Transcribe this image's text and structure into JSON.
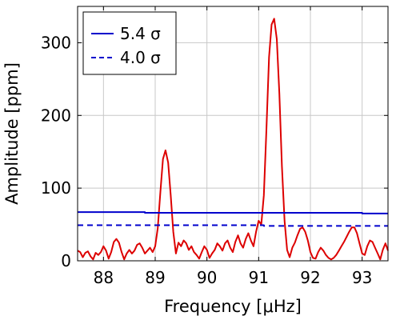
{
  "chart_data": {
    "type": "line",
    "xlabel": "Frequency [μHz]",
    "ylabel": "Amplitude [ppm]",
    "xlim": [
      87.5,
      93.5
    ],
    "ylim": [
      0,
      350
    ],
    "xticks": [
      88,
      89,
      90,
      91,
      92,
      93
    ],
    "yticks": [
      0,
      100,
      200,
      300
    ],
    "grid": true,
    "legend_placement": "top-left",
    "legend": [
      {
        "label": "5.4 σ",
        "color": "#0000cc",
        "style": "solid"
      },
      {
        "label": "4.0 σ",
        "color": "#0000cc",
        "style": "dashed"
      }
    ],
    "series": [
      {
        "color": "#dd0000",
        "style": "solid",
        "points": [
          [
            87.5,
            14
          ],
          [
            87.55,
            12
          ],
          [
            87.6,
            5
          ],
          [
            87.65,
            11
          ],
          [
            87.7,
            13
          ],
          [
            87.75,
            6
          ],
          [
            87.8,
            2
          ],
          [
            87.85,
            11
          ],
          [
            87.9,
            8
          ],
          [
            87.95,
            12
          ],
          [
            88.0,
            20
          ],
          [
            88.05,
            14
          ],
          [
            88.1,
            3
          ],
          [
            88.15,
            12
          ],
          [
            88.2,
            26
          ],
          [
            88.25,
            30
          ],
          [
            88.3,
            25
          ],
          [
            88.35,
            12
          ],
          [
            88.4,
            2
          ],
          [
            88.45,
            10
          ],
          [
            88.5,
            15
          ],
          [
            88.55,
            10
          ],
          [
            88.6,
            14
          ],
          [
            88.65,
            22
          ],
          [
            88.7,
            24
          ],
          [
            88.75,
            18
          ],
          [
            88.8,
            10
          ],
          [
            88.85,
            14
          ],
          [
            88.9,
            18
          ],
          [
            88.95,
            12
          ],
          [
            89.0,
            20
          ],
          [
            89.05,
            45
          ],
          [
            89.1,
            95
          ],
          [
            89.15,
            140
          ],
          [
            89.2,
            152
          ],
          [
            89.25,
            135
          ],
          [
            89.3,
            90
          ],
          [
            89.35,
            40
          ],
          [
            89.4,
            10
          ],
          [
            89.45,
            25
          ],
          [
            89.5,
            20
          ],
          [
            89.55,
            28
          ],
          [
            89.6,
            24
          ],
          [
            89.65,
            15
          ],
          [
            89.7,
            20
          ],
          [
            89.75,
            12
          ],
          [
            89.8,
            8
          ],
          [
            89.85,
            3
          ],
          [
            89.9,
            12
          ],
          [
            89.95,
            20
          ],
          [
            90.0,
            15
          ],
          [
            90.05,
            4
          ],
          [
            90.1,
            10
          ],
          [
            90.15,
            15
          ],
          [
            90.2,
            24
          ],
          [
            90.25,
            20
          ],
          [
            90.3,
            14
          ],
          [
            90.35,
            24
          ],
          [
            90.4,
            28
          ],
          [
            90.45,
            18
          ],
          [
            90.5,
            12
          ],
          [
            90.55,
            26
          ],
          [
            90.6,
            35
          ],
          [
            90.65,
            24
          ],
          [
            90.7,
            18
          ],
          [
            90.75,
            30
          ],
          [
            90.8,
            38
          ],
          [
            90.85,
            28
          ],
          [
            90.9,
            20
          ],
          [
            90.95,
            40
          ],
          [
            91.0,
            55
          ],
          [
            91.05,
            50
          ],
          [
            91.1,
            90
          ],
          [
            91.15,
            180
          ],
          [
            91.2,
            280
          ],
          [
            91.25,
            325
          ],
          [
            91.3,
            333
          ],
          [
            91.35,
            305
          ],
          [
            91.4,
            230
          ],
          [
            91.45,
            130
          ],
          [
            91.5,
            55
          ],
          [
            91.55,
            15
          ],
          [
            91.6,
            5
          ],
          [
            91.65,
            18
          ],
          [
            91.7,
            25
          ],
          [
            91.75,
            35
          ],
          [
            91.8,
            44
          ],
          [
            91.85,
            46
          ],
          [
            91.9,
            40
          ],
          [
            91.95,
            28
          ],
          [
            92.0,
            12
          ],
          [
            92.05,
            4
          ],
          [
            92.1,
            3
          ],
          [
            92.15,
            12
          ],
          [
            92.2,
            18
          ],
          [
            92.25,
            14
          ],
          [
            92.3,
            8
          ],
          [
            92.35,
            4
          ],
          [
            92.4,
            2
          ],
          [
            92.45,
            4
          ],
          [
            92.5,
            8
          ],
          [
            92.55,
            14
          ],
          [
            92.6,
            20
          ],
          [
            92.65,
            26
          ],
          [
            92.7,
            33
          ],
          [
            92.75,
            40
          ],
          [
            92.8,
            46
          ],
          [
            92.85,
            46
          ],
          [
            92.9,
            38
          ],
          [
            92.95,
            24
          ],
          [
            93.0,
            10
          ],
          [
            93.05,
            8
          ],
          [
            93.1,
            20
          ],
          [
            93.15,
            28
          ],
          [
            93.2,
            26
          ],
          [
            93.25,
            18
          ],
          [
            93.3,
            10
          ],
          [
            93.35,
            2
          ],
          [
            93.4,
            15
          ],
          [
            93.45,
            24
          ],
          [
            93.5,
            14
          ]
        ]
      },
      {
        "color": "#0000cc",
        "style": "solid",
        "points": [
          [
            87.5,
            67
          ],
          [
            88.8,
            67
          ],
          [
            88.8,
            66
          ],
          [
            93.0,
            66
          ],
          [
            93.0,
            65
          ],
          [
            93.5,
            65
          ]
        ]
      },
      {
        "color": "#0000cc",
        "style": "dashed",
        "points": [
          [
            87.5,
            49
          ],
          [
            91.1,
            49
          ],
          [
            91.1,
            48
          ],
          [
            93.5,
            48
          ]
        ]
      }
    ]
  }
}
